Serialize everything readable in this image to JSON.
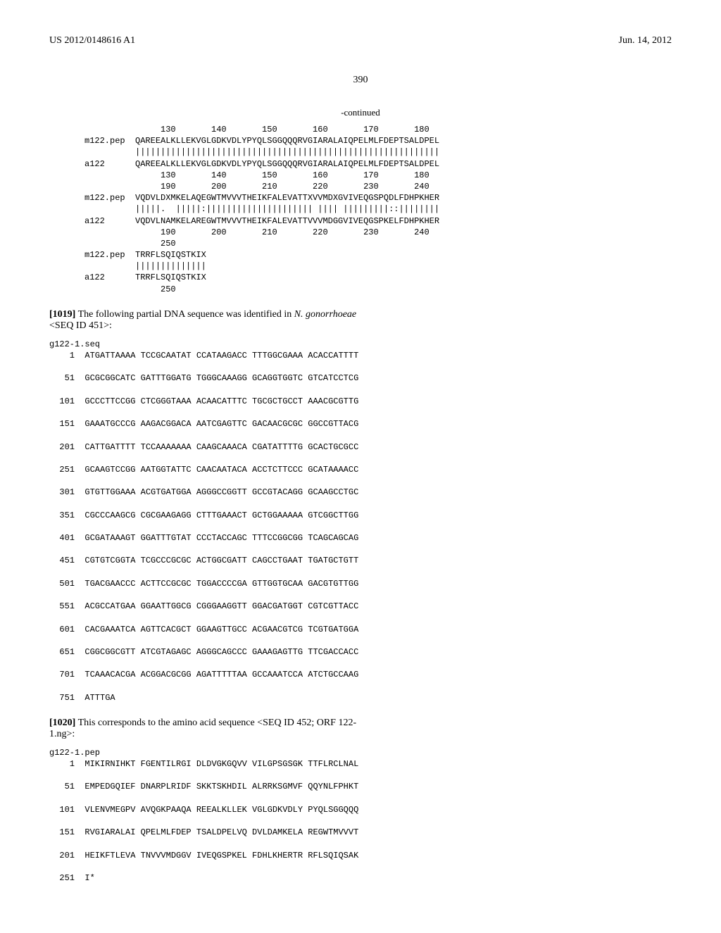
{
  "header": {
    "left": "US 2012/0148616 A1",
    "right": "Jun. 14, 2012"
  },
  "page_number": "390",
  "continued_label": "-continued",
  "alignment_block": "               130       140       150       160       170       180\nm122.pep  QAREEALKLLEKVGLGDKVDLYPYQLSGGQQQRVGIARALAIQPELMLFDEPTSALDPEL\n          ||||||||||||||||||||||||||||||||||||||||||||||||||||||||||||\na122      QAREEALKLLEKVGLGDKVDLYPYQLSGGQQQRVGIARALAIQPELMLFDEPTSALDPEL\n               130       140       150       160       170       180\n               190       200       210       220       230       240\nm122.pep  VQDVLDXMKELAQEGWTMVVVTHEIKFALEVATTXVVMDXGVIVEQGSPQDLFDHPKHER\n          |||||.  |||||:||||||||||||||||||||| |||| |||||||||::||||||||\na122      VQDVLNAMKELAREGWTMVVVTHEIKFALEVATTVVVMDGGVIVEQGSPKELFDHPKHER\n               190       200       210       220       230       240\n               250\nm122.pep  TRRFLSQIQSTKIX\n          ||||||||||||||\na122      TRRFLSQIQSTKIX\n               250",
  "para_1019": {
    "num": "[1019]",
    "text_before_italic": "   The following partial DNA sequence was identified in ",
    "italic": "N. gonorrhoeae",
    "text_after_italic": " <SEQ ID 451>:"
  },
  "dna_block": "g122-1.seq\n    1  ATGATTAAAA TCCGCAATAT CCATAAGACC TTTGGCGAAA ACACCATTTT\n\n   51  GCGCGGCATC GATTTGGATG TGGGCAAAGG GCAGGTGGTC GTCATCCTCG\n\n  101  GCCCTTCCGG CTCGGGTAAA ACAACATTTC TGCGCTGCCT AAACGCGTTG\n\n  151  GAAATGCCCG AAGACGGACA AATCGAGTTC GACAACGCGC GGCCGTTACG\n\n  201  CATTGATTTT TCCAAAAAAA CAAGCAAACA CGATATTTTG GCACTGCGCC\n\n  251  GCAAGTCCGG AATGGTATTC CAACAATACA ACCTCTTCCC GCATAAAACC\n\n  301  GTGTTGGAAA ACGTGATGGA AGGGCCGGTT GCCGTACAGG GCAAGCCTGC\n\n  351  CGCCCAAGCG CGCGAAGAGG CTTTGAAACT GCTGGAAAAA GTCGGCTTGG\n\n  401  GCGATAAAGT GGATTTGTAT CCCTACCAGC TTTCCGGCGG TCAGCAGCAG\n\n  451  CGTGTCGGTA TCGCCCGCGC ACTGGCGATT CAGCCTGAAT TGATGCTGTT\n\n  501  TGACGAACCC ACTTCCGCGC TGGACCCCGA GTTGGTGCAA GACGTGTTGG\n\n  551  ACGCCATGAA GGAATTGGCG CGGGAAGGTT GGACGATGGT CGTCGTTACC\n\n  601  CACGAAATCA AGTTCACGCT GGAAGTTGCC ACGAACGTCG TCGTGATGGA\n\n  651  CGGCGGCGTT ATCGTAGAGC AGGGCAGCCC GAAAGAGTTG TTCGACCACC\n\n  701  TCAAACACGA ACGGACGCGG AGATTTTTAA GCCAAATCCA ATCTGCCAAG\n\n  751  ATTTGA",
  "para_1020": {
    "num": "[1020]",
    "text": "   This corresponds to the amino acid sequence <SEQ ID 452; ORF 122-1.ng>:"
  },
  "pep_block": "g122-1.pep\n    1  MIKIRNIHKT FGENTILRGI DLDVGKGQVV VILGPSGSGK TTFLRCLNAL\n\n   51  EMPEDGQIEF DNARPLRIDF SKKTSKHDIL ALRRKSGMVF QQYNLFPHKT\n\n  101  VLENVMEGPV AVQGKPAAQA REEALKLLEK VGLGDKVDLY PYQLSGGQQQ\n\n  151  RVGIARALAI QPELMLFDEP TSALDPELVQ DVLDAMKELA REGWTMVVVT\n\n  201  HEIKFTLEVA TNVVVMDGGV IVEQGSPKEL FDHLKHERTR RFLSQIQSAK\n\n  251  I*"
}
